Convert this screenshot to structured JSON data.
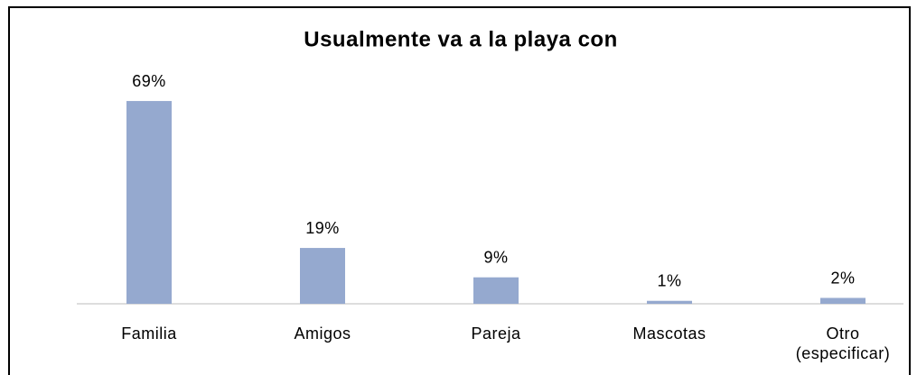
{
  "chart_data": {
    "type": "bar",
    "title": "Usualmente va a la playa con",
    "categories": [
      "Familia",
      "Amigos",
      "Pareja",
      "Mascotas",
      "Otro (especificar)"
    ],
    "values": [
      69,
      19,
      9,
      1,
      2
    ],
    "value_labels": [
      "69%",
      "19%",
      "9%",
      "1%",
      "2%"
    ],
    "color": "#95a9cf"
  }
}
